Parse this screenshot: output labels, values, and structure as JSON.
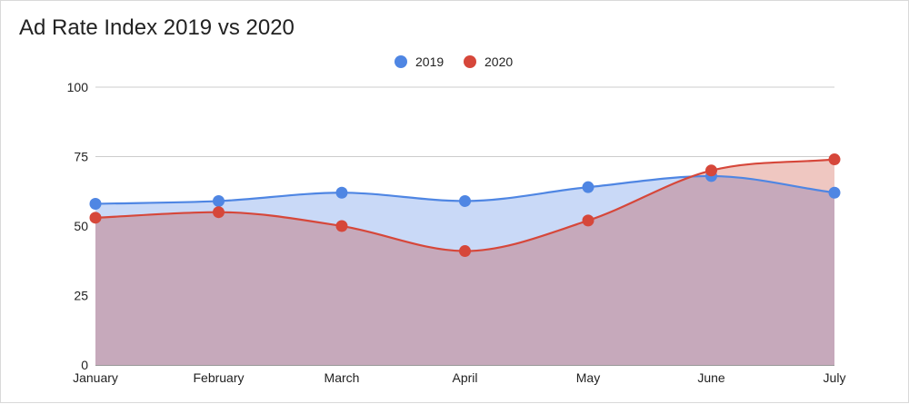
{
  "chart_data": {
    "type": "area",
    "title": "Ad Rate Index 2019 vs 2020",
    "categories": [
      "January",
      "February",
      "March",
      "April",
      "May",
      "June",
      "July"
    ],
    "series": [
      {
        "name": "2019",
        "values": [
          58,
          59,
          62,
          59,
          64,
          68,
          62
        ],
        "color": "#4f86e3",
        "fill": "#c9d9f7"
      },
      {
        "name": "2020",
        "values": [
          53,
          55,
          50,
          41,
          52,
          70,
          74
        ],
        "color": "#d6473a",
        "fill": "#c6a9bb"
      }
    ],
    "ylim": [
      0,
      100
    ],
    "yticks": [
      0,
      25,
      50,
      75,
      100
    ],
    "xlabel": "",
    "ylabel": "",
    "grid": true,
    "legend_position": "top-center",
    "smooth": true,
    "overlap_fill_2020_above": "#efc7c1"
  }
}
